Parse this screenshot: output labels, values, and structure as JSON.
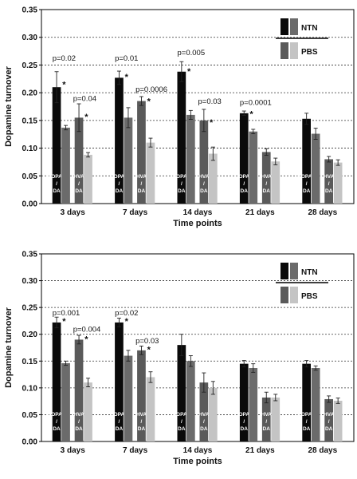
{
  "colors": {
    "ntn_dopac": "#0a0a0a",
    "ntn_hva": "#6b6b6b",
    "pbs_dopac": "#5a5a5a",
    "pbs_hva": "#c4c4c4",
    "grid": "#333333"
  },
  "chart_data": [
    {
      "type": "bar",
      "ylabel": "Dopamine turnover",
      "xlabel": "Time points",
      "ylim": [
        0,
        0.35
      ],
      "yticks": [
        "0.00",
        "0.05",
        "0.10",
        "0.15",
        "0.20",
        "0.25",
        "0.30",
        "0.35"
      ],
      "grid": "horizontal dashed",
      "categories": [
        "3 days",
        "7 days",
        "14 days",
        "21 days",
        "28 days"
      ],
      "series": [
        {
          "values": [
            0.21,
            0.227,
            0.238,
            0.163,
            0.153
          ],
          "errors": [
            0.028,
            0.012,
            0.018,
            0.004,
            0.01
          ]
        },
        {
          "values": [
            0.137,
            0.155,
            0.16,
            0.13,
            0.126
          ],
          "errors": [
            0.004,
            0.018,
            0.008,
            0.004,
            0.01
          ]
        },
        {
          "values": [
            0.155,
            0.185,
            0.15,
            0.093,
            0.08
          ],
          "errors": [
            0.025,
            0.008,
            0.02,
            0.006,
            0.005
          ]
        },
        {
          "values": [
            0.088,
            0.11,
            0.09,
            0.076,
            0.074
          ],
          "errors": [
            0.004,
            0.008,
            0.012,
            0.006,
            0.005
          ]
        }
      ],
      "bar_labels": [
        [
          "DOPAC",
          "/",
          "DA"
        ],
        [],
        [
          "HVA",
          "/",
          "DA"
        ],
        []
      ],
      "annotations": [
        {
          "text": "p=0.02",
          "category": 0,
          "value": 0.258,
          "offset": 0
        },
        {
          "text": "*",
          "category": 0,
          "series": 0,
          "value": 0.218
        },
        {
          "text": "p=0.04",
          "category": 0,
          "value": 0.185,
          "offset": 1
        },
        {
          "text": "*",
          "category": 0,
          "series": 2,
          "value": 0.16
        },
        {
          "text": "p=0.01",
          "category": 1,
          "value": 0.258,
          "offset": 0
        },
        {
          "text": "*",
          "category": 1,
          "series": 0,
          "value": 0.232
        },
        {
          "text": "p=0.0006",
          "category": 1,
          "value": 0.202,
          "offset": 1
        },
        {
          "text": "*",
          "category": 1,
          "series": 2,
          "value": 0.188
        },
        {
          "text": "p=0.005",
          "category": 2,
          "value": 0.268,
          "offset": 0
        },
        {
          "text": "*",
          "category": 2,
          "series": 0,
          "value": 0.242
        },
        {
          "text": "p=0.03",
          "category": 2,
          "value": 0.18,
          "offset": 1
        },
        {
          "text": "*",
          "category": 2,
          "series": 2,
          "value": 0.15
        },
        {
          "text": "p=0.0001",
          "category": 3,
          "value": 0.178,
          "offset": 0
        },
        {
          "text": "*",
          "category": 3,
          "series": 0,
          "value": 0.165
        }
      ],
      "legend": {
        "position": "top-right",
        "labels": [
          "NTN",
          "PBS"
        ]
      }
    },
    {
      "type": "bar",
      "ylabel": "Dopamine turnover",
      "xlabel": "Time points",
      "ylim": [
        0,
        0.35
      ],
      "yticks": [
        "0.00",
        "0.05",
        "0.10",
        "0.15",
        "0.20",
        "0.25",
        "0.30",
        "0.35"
      ],
      "grid": "horizontal dashed",
      "categories": [
        "3 days",
        "7 days",
        "14 days",
        "21 days",
        "28 days"
      ],
      "series": [
        {
          "values": [
            0.222,
            0.222,
            0.18,
            0.145,
            0.145
          ],
          "errors": [
            0.01,
            0.008,
            0.02,
            0.006,
            0.006
          ]
        },
        {
          "values": [
            0.146,
            0.16,
            0.15,
            0.137,
            0.137
          ],
          "errors": [
            0.004,
            0.01,
            0.01,
            0.008,
            0.004
          ]
        },
        {
          "values": [
            0.19,
            0.17,
            0.11,
            0.082,
            0.079
          ],
          "errors": [
            0.008,
            0.008,
            0.018,
            0.01,
            0.006
          ]
        },
        {
          "values": [
            0.11,
            0.12,
            0.1,
            0.082,
            0.076
          ],
          "errors": [
            0.008,
            0.01,
            0.012,
            0.006,
            0.005
          ]
        }
      ],
      "bar_labels": [
        [
          "DOPAC",
          "/",
          "DA"
        ],
        [],
        [
          "HVA",
          "/",
          "DA"
        ],
        []
      ],
      "annotations": [
        {
          "text": "p=0.001",
          "category": 0,
          "value": 0.235,
          "offset": 0
        },
        {
          "text": "*",
          "category": 0,
          "series": 0,
          "value": 0.228
        },
        {
          "text": "p=0.004",
          "category": 0,
          "value": 0.205,
          "offset": 1
        },
        {
          "text": "*",
          "category": 0,
          "series": 2,
          "value": 0.194
        },
        {
          "text": "p=0.02",
          "category": 1,
          "value": 0.235,
          "offset": 0
        },
        {
          "text": "*",
          "category": 1,
          "series": 0,
          "value": 0.228
        },
        {
          "text": "p=0.03",
          "category": 1,
          "value": 0.183,
          "offset": 1
        },
        {
          "text": "*",
          "category": 1,
          "series": 2,
          "value": 0.175
        }
      ],
      "legend": {
        "position": "top-right",
        "labels": [
          "NTN",
          "PBS"
        ]
      }
    }
  ]
}
